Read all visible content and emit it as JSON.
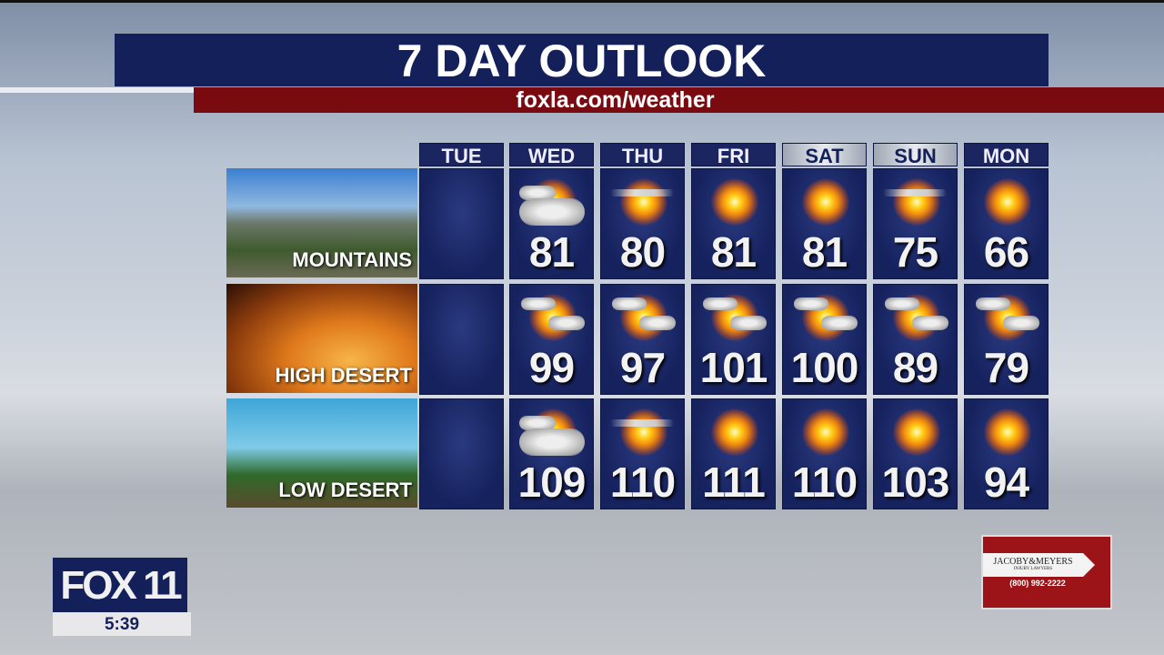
{
  "title": "7 DAY OUTLOOK",
  "subtitle": "foxla.com/weather",
  "days": [
    {
      "label": "TUE",
      "weekend": false
    },
    {
      "label": "WED",
      "weekend": false
    },
    {
      "label": "THU",
      "weekend": false
    },
    {
      "label": "FRI",
      "weekend": false
    },
    {
      "label": "SAT",
      "weekend": true
    },
    {
      "label": "SUN",
      "weekend": true
    },
    {
      "label": "MON",
      "weekend": false
    }
  ],
  "regions": [
    {
      "label": "MOUNTAINS",
      "forecast": [
        null,
        {
          "icon": "mostly-cloudy",
          "temp": "81"
        },
        {
          "icon": "hazy-sun",
          "temp": "80"
        },
        {
          "icon": "sunny",
          "temp": "81"
        },
        {
          "icon": "sunny",
          "temp": "81"
        },
        {
          "icon": "hazy-sun",
          "temp": "75"
        },
        {
          "icon": "sunny",
          "temp": "66"
        }
      ]
    },
    {
      "label": "HIGH DESERT",
      "forecast": [
        null,
        {
          "icon": "partly-cloudy",
          "temp": "99"
        },
        {
          "icon": "partly-cloudy",
          "temp": "97"
        },
        {
          "icon": "partly-cloudy",
          "temp": "101"
        },
        {
          "icon": "partly-cloudy",
          "temp": "100"
        },
        {
          "icon": "partly-cloudy",
          "temp": "89"
        },
        {
          "icon": "partly-cloudy",
          "temp": "79"
        }
      ]
    },
    {
      "label": "LOW DESERT",
      "forecast": [
        null,
        {
          "icon": "mostly-cloudy",
          "temp": "109"
        },
        {
          "icon": "hazy-sun",
          "temp": "110"
        },
        {
          "icon": "sunny",
          "temp": "111"
        },
        {
          "icon": "sunny",
          "temp": "110"
        },
        {
          "icon": "sunny",
          "temp": "103"
        },
        {
          "icon": "sunny",
          "temp": "94"
        }
      ]
    }
  ],
  "station": {
    "logo": "FOX 11",
    "time": "5:39"
  },
  "ad": {
    "name": "JACOBY&MEYERS",
    "tagline": "INJURY LAWYERS",
    "phone": "(800) 992-2222"
  },
  "colors": {
    "navy": "#13205a",
    "red": "#780a10"
  }
}
